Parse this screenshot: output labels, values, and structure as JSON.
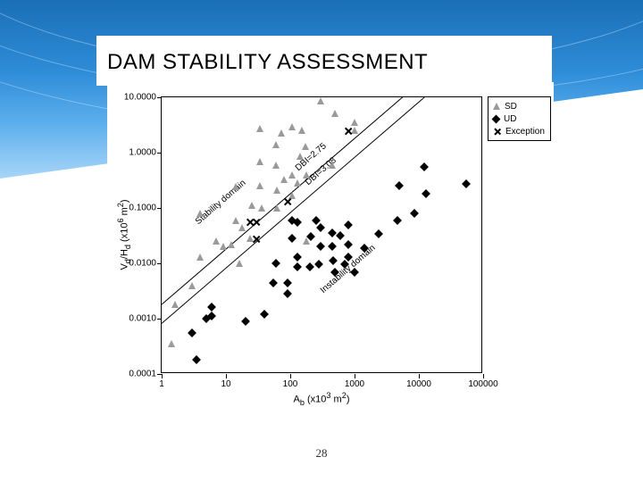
{
  "slide": {
    "title": "DAM STABILITY ASSESSMENT",
    "page_number": "28",
    "banner_gradient": [
      "#1a6fb5",
      "#2e8cd8",
      "#5eb0ee",
      "#a8d5f7"
    ]
  },
  "chart": {
    "type": "scatter",
    "background_color": "#ffffff",
    "border_color": "#000000",
    "x_axis": {
      "label": "A_b (x10^3 m^2)",
      "scale": "log",
      "lim": [
        1,
        100000
      ],
      "ticks": [
        1,
        10,
        100,
        1000,
        10000,
        100000
      ],
      "tick_labels": [
        "1",
        "10",
        "100",
        "1000",
        "10000",
        "100000"
      ],
      "label_fontsize": 11
    },
    "y_axis": {
      "label": "V_d/H_d (x10^6 m^2)",
      "scale": "log",
      "lim": [
        0.0001,
        10.0
      ],
      "ticks": [
        0.0001,
        0.001,
        0.01,
        0.1,
        1.0,
        10.0
      ],
      "tick_labels": [
        "0.0001",
        "0.0010",
        "0.0100",
        "0.1000",
        "1.0000",
        "10.0000"
      ],
      "label_fontsize": 11
    },
    "tick_fontsize": 10,
    "lines": [
      {
        "name": "DBI=2.75",
        "slope_loglog": 1,
        "y_at_x1": 0.0018,
        "color": "#000000",
        "width": 1
      },
      {
        "name": "DBI=3.08",
        "slope_loglog": 1,
        "y_at_x1": 0.00082,
        "color": "#000000",
        "width": 1
      }
    ],
    "domain_labels": [
      {
        "text": "Stability domain",
        "rotation_deg": -38
      },
      {
        "text": "Instability domain",
        "rotation_deg": -38
      }
    ],
    "series": [
      {
        "name": "SD",
        "marker": "triangle",
        "color": "#9a9a9a",
        "points": [
          [
            1.4,
            0.00035
          ],
          [
            1.6,
            0.0018
          ],
          [
            3,
            0.004
          ],
          [
            4,
            0.013
          ],
          [
            4,
            0.08
          ],
          [
            7,
            0.025
          ],
          [
            9,
            0.02
          ],
          [
            12,
            0.022
          ],
          [
            14,
            0.06
          ],
          [
            14,
            0.24
          ],
          [
            16,
            0.01
          ],
          [
            18,
            0.045
          ],
          [
            24,
            0.028
          ],
          [
            25,
            0.11
          ],
          [
            34,
            0.25
          ],
          [
            34,
            0.7
          ],
          [
            34,
            2.7
          ],
          [
            36,
            0.1
          ],
          [
            60,
            0.6
          ],
          [
            60,
            1.4
          ],
          [
            62,
            0.1
          ],
          [
            62,
            0.21
          ],
          [
            72,
            2.3
          ],
          [
            80,
            0.33
          ],
          [
            105,
            0.17
          ],
          [
            105,
            0.4
          ],
          [
            105,
            2.9
          ],
          [
            130,
            0.28
          ],
          [
            140,
            0.85
          ],
          [
            150,
            2.5
          ],
          [
            170,
            1.3
          ],
          [
            180,
            0.025
          ],
          [
            180,
            0.4
          ],
          [
            300,
            8.6
          ],
          [
            450,
            0.6
          ],
          [
            500,
            5.2
          ],
          [
            1000,
            2.5
          ],
          [
            1000,
            3.6
          ]
        ]
      },
      {
        "name": "UD",
        "marker": "diamond",
        "color": "#000000",
        "points": [
          [
            3,
            0.00055
          ],
          [
            3.5,
            0.00018
          ],
          [
            5,
            0.001
          ],
          [
            6,
            0.0011
          ],
          [
            6,
            0.0016
          ],
          [
            20,
            0.0009
          ],
          [
            40,
            0.0012
          ],
          [
            55,
            0.0045
          ],
          [
            60,
            0.01
          ],
          [
            90,
            0.0028
          ],
          [
            90,
            0.0045
          ],
          [
            105,
            0.028
          ],
          [
            105,
            0.06
          ],
          [
            130,
            0.0085
          ],
          [
            130,
            0.013
          ],
          [
            130,
            0.055
          ],
          [
            200,
            0.0085
          ],
          [
            210,
            0.03
          ],
          [
            250,
            0.06
          ],
          [
            280,
            0.0095
          ],
          [
            300,
            0.02
          ],
          [
            300,
            0.045
          ],
          [
            450,
            0.02
          ],
          [
            450,
            0.035
          ],
          [
            470,
            0.011
          ],
          [
            500,
            0.007
          ],
          [
            600,
            0.032
          ],
          [
            700,
            0.0095
          ],
          [
            800,
            0.013
          ],
          [
            800,
            0.022
          ],
          [
            800,
            0.05
          ],
          [
            1000,
            0.007
          ],
          [
            1400,
            0.019
          ],
          [
            2400,
            0.034
          ],
          [
            4600,
            0.06
          ],
          [
            5000,
            0.25
          ],
          [
            8500,
            0.08
          ],
          [
            12000,
            0.55
          ],
          [
            13000,
            0.18
          ],
          [
            55000,
            0.27
          ]
        ]
      },
      {
        "name": "Exception",
        "marker": "x",
        "color": "#000000",
        "points": [
          [
            24,
            0.055
          ],
          [
            30,
            0.027
          ],
          [
            30,
            0.055
          ],
          [
            90,
            0.13
          ],
          [
            800,
            2.4
          ]
        ]
      }
    ],
    "legend": {
      "position": "outside-right-top",
      "items": [
        "SD",
        "UD",
        "Exception"
      ]
    }
  }
}
